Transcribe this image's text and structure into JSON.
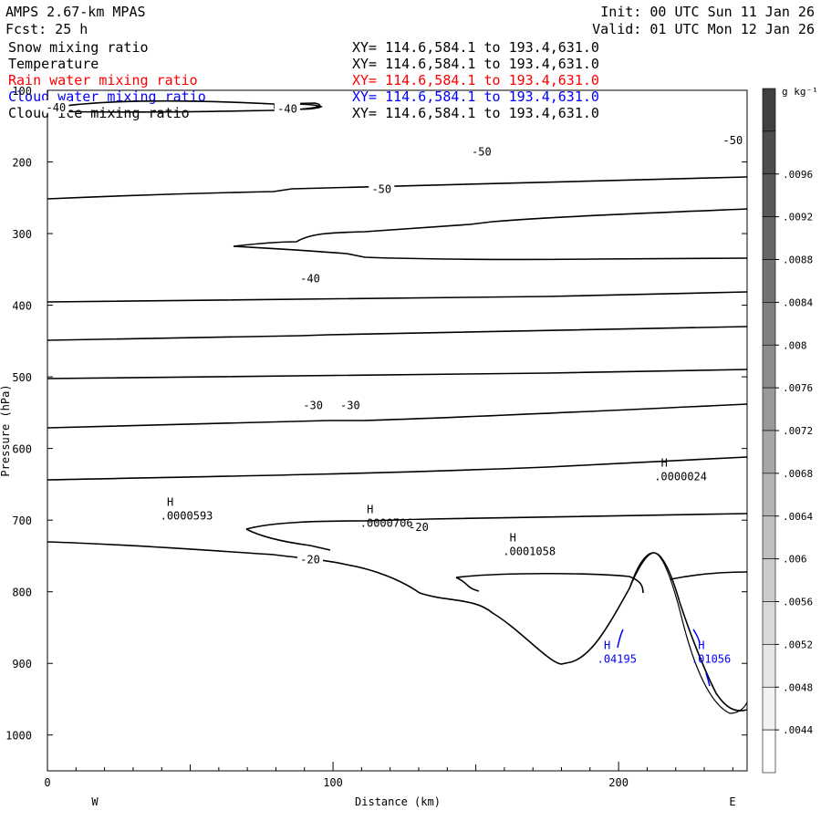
{
  "header": {
    "model": "AMPS 2.67-km MPAS",
    "forecast": "Fcst:   25 h",
    "init": "Init: 00 UTC Sun 11 Jan 26",
    "valid": "Valid: 01 UTC Mon 12 Jan 26"
  },
  "fields": [
    {
      "name": "Snow mixing ratio",
      "xy": "XY= 114.6,584.1 to 193.4,631.0",
      "color": "#000000"
    },
    {
      "name": "Temperature",
      "xy": "XY= 114.6,584.1 to 193.4,631.0",
      "color": "#000000"
    },
    {
      "name": "Rain water mixing ratio",
      "xy": "XY= 114.6,584.1 to 193.4,631.0",
      "color": "#ff0000"
    },
    {
      "name": "Cloud water mixing ratio",
      "xy": "XY= 114.6,584.1 to 193.4,631.0",
      "color": "#0000ff"
    },
    {
      "name": "Cloud ice mixing ratio",
      "xy": "XY= 114.6,584.1 to 193.4,631.0",
      "color": "#000000"
    }
  ],
  "chart_data": {
    "type": "contour",
    "xlabel": "Distance (km)",
    "ylabel": "Pressure (hPa)",
    "xlim": [
      0,
      245
    ],
    "ylim": [
      1050,
      100
    ],
    "y_scale": "linear-inverted",
    "x_ticks": [
      0,
      100,
      200
    ],
    "y_ticks": [
      100,
      200,
      300,
      400,
      500,
      600,
      700,
      800,
      900,
      1000
    ],
    "west_label": "W",
    "east_label": "E",
    "colorbar": {
      "units": "g kg⁻¹",
      "labels": [
        ".0096",
        ".0092",
        ".0088",
        ".0084",
        ".008",
        ".0076",
        ".0072",
        ".0068",
        ".0064",
        ".006",
        ".0056",
        ".0052",
        ".0048",
        ".0044"
      ]
    },
    "temperature_labels": [
      {
        "text": "-40",
        "x": 3,
        "p": 124
      },
      {
        "text": "-40",
        "x": 84,
        "p": 126
      },
      {
        "text": "-50",
        "x": 152,
        "p": 186
      },
      {
        "text": "-50",
        "x": 240,
        "p": 170
      },
      {
        "text": "-50",
        "x": 117,
        "p": 238
      },
      {
        "text": "-40",
        "x": 92,
        "p": 363
      },
      {
        "text": "-30",
        "x": 93,
        "p": 540
      },
      {
        "text": "-30",
        "x": 106,
        "p": 540
      },
      {
        "text": "-20",
        "x": 130,
        "p": 710
      },
      {
        "text": "-20",
        "x": 92,
        "p": 755
      }
    ],
    "maxima": [
      {
        "label": "H",
        "value": ".0000593",
        "x": 43,
        "p": 680,
        "color": "#000000"
      },
      {
        "label": "H",
        "value": ".0000706",
        "x": 113,
        "p": 690,
        "color": "#000000"
      },
      {
        "label": "H",
        "value": ".0001058",
        "x": 163,
        "p": 730,
        "color": "#000000"
      },
      {
        "label": "H",
        "value": ".0000024",
        "x": 216,
        "p": 625,
        "color": "#000000"
      },
      {
        "label": "H",
        "value": ".04195",
        "x": 196,
        "p": 880,
        "color": "#0000ff"
      },
      {
        "label": "H",
        "value": ".01056",
        "x": 229,
        "p": 880,
        "color": "#0000ff"
      }
    ]
  }
}
